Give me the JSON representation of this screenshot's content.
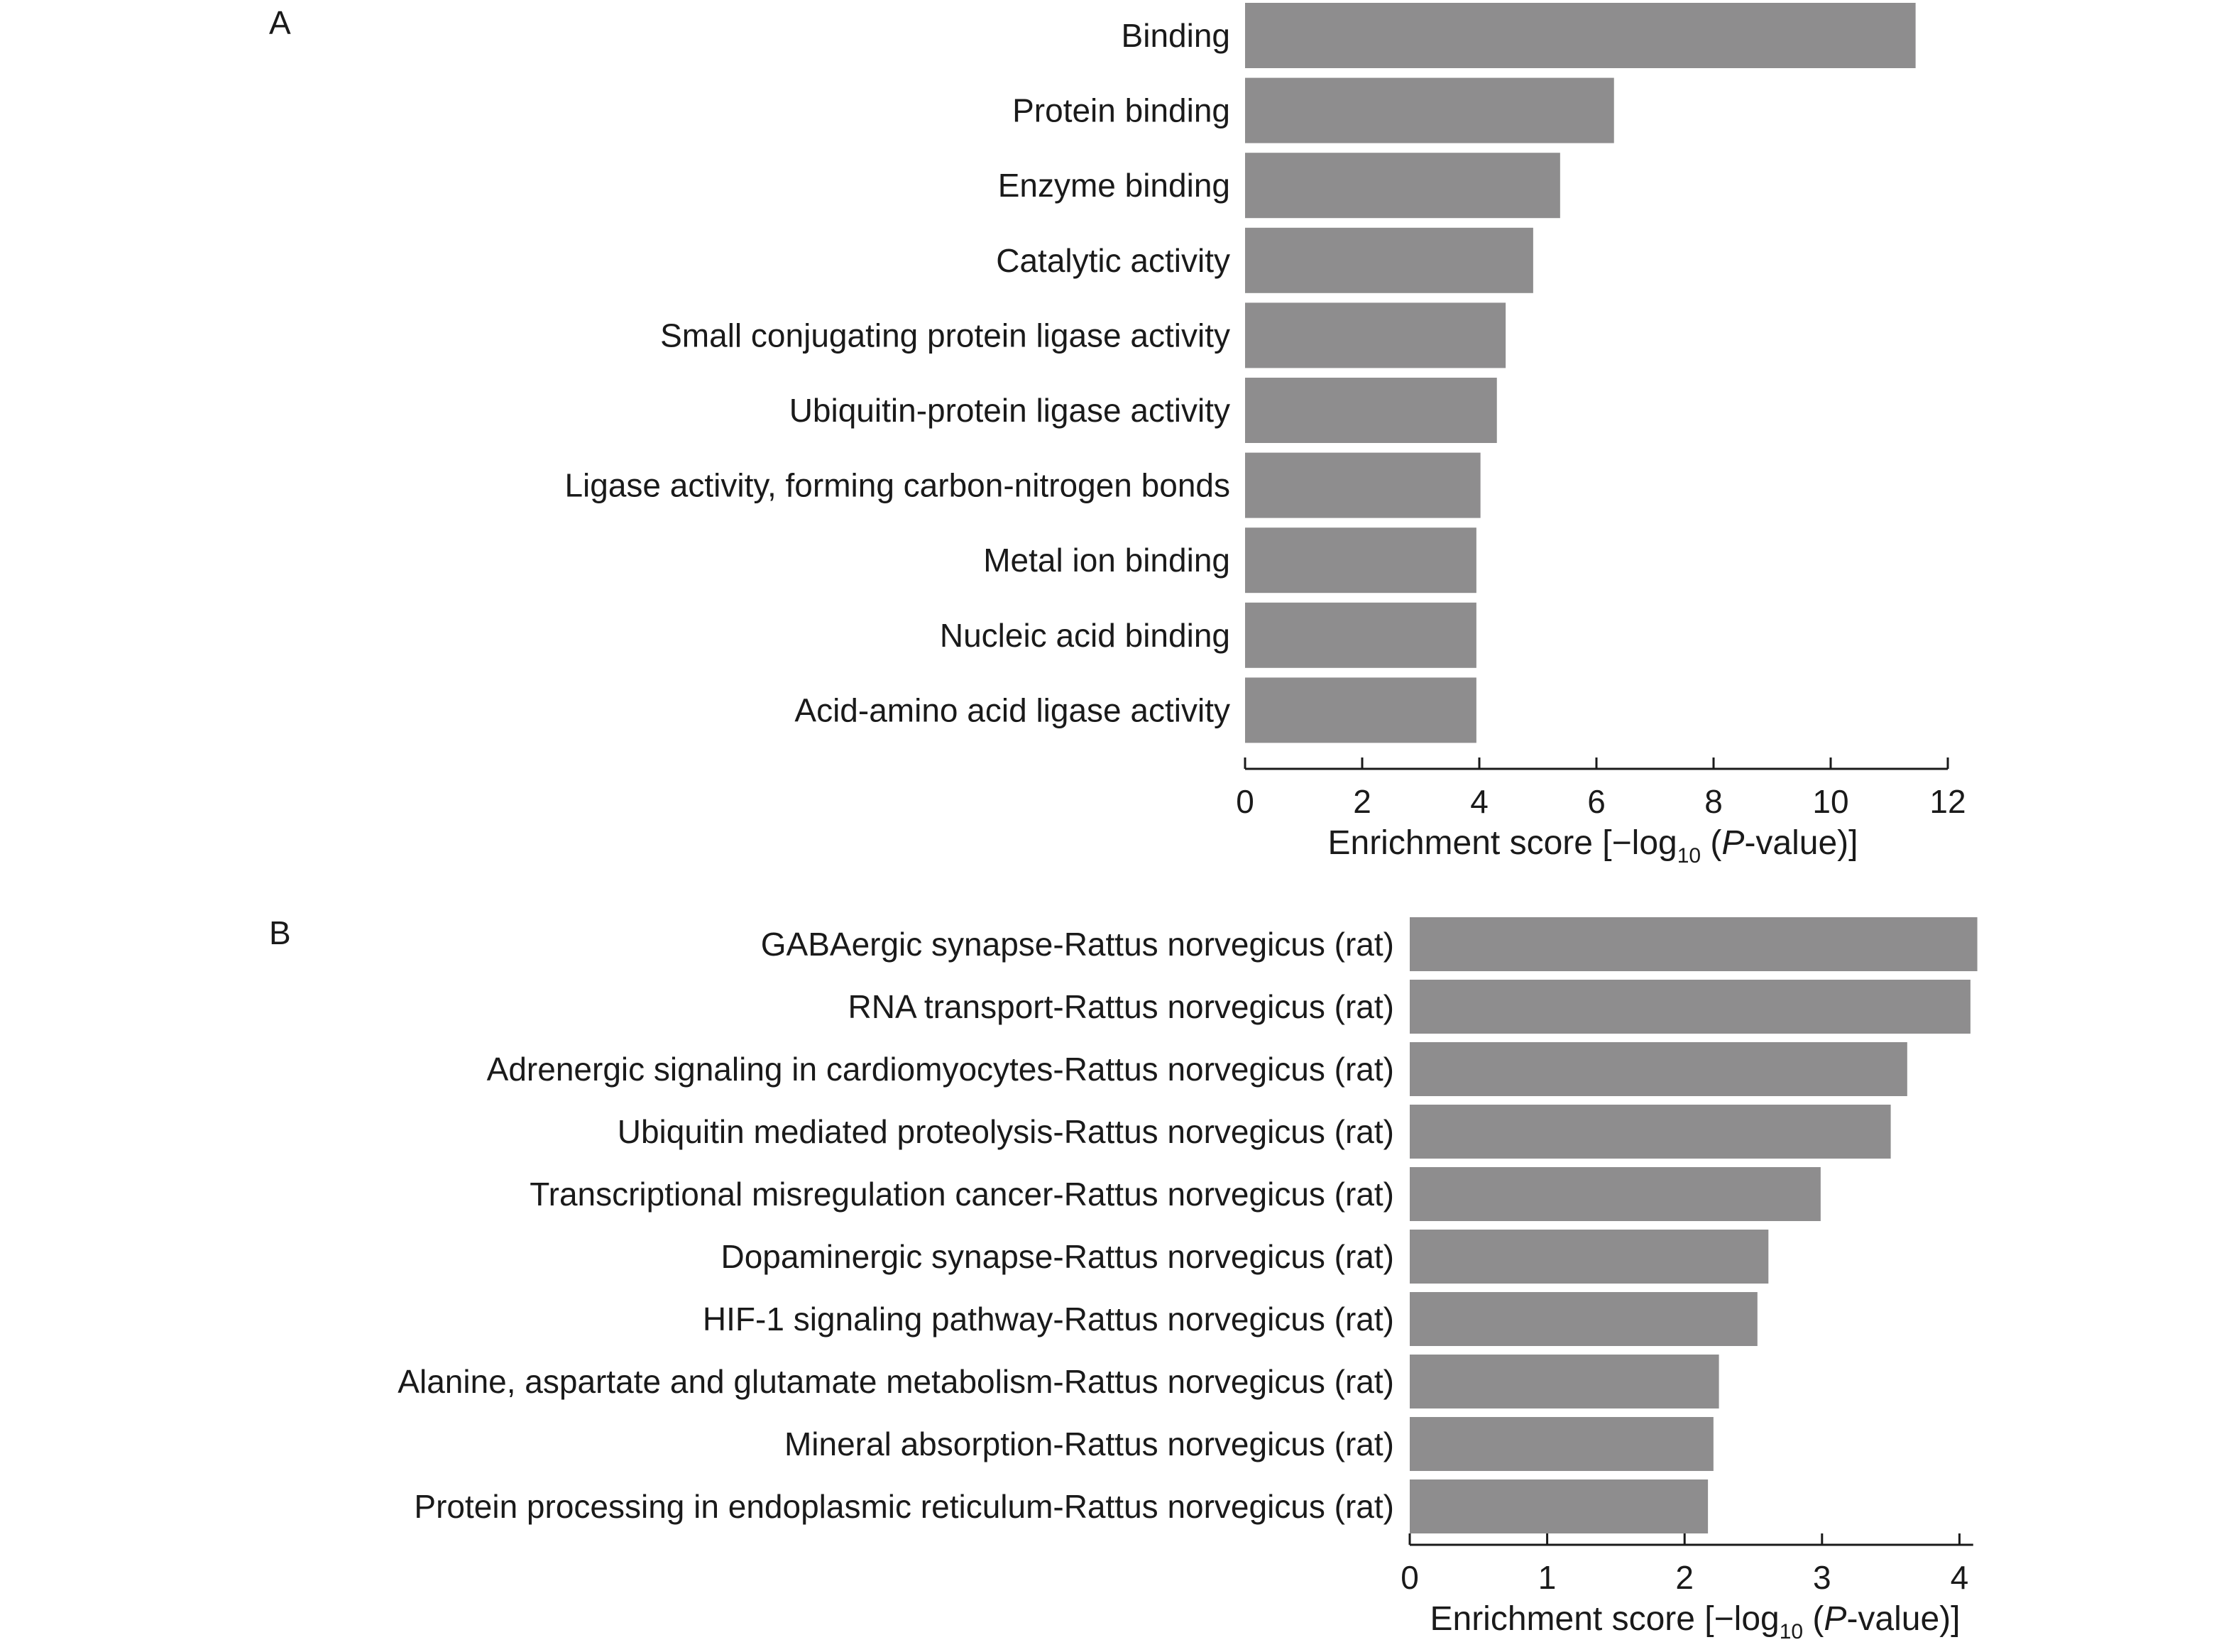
{
  "chart_data": [
    {
      "type": "bar",
      "orientation": "horizontal",
      "panel_label": "A",
      "title": "",
      "categories": [
        "Binding",
        "Protein binding",
        "Enzyme binding",
        "Catalytic activity",
        "Small conjugating protein ligase activity",
        "Ubiquitin-protein ligase activity",
        "Ligase activity, forming carbon-nitrogen bonds",
        "Metal ion binding",
        "Nucleic acid binding",
        "Acid-amino acid ligase activity"
      ],
      "values": [
        11.45,
        6.3,
        5.38,
        4.92,
        4.45,
        4.3,
        4.02,
        3.95,
        3.95,
        3.95
      ],
      "xlabel": {
        "pre": "Enrichment score [−log",
        "sub": "10",
        "mid": " (",
        "italic": "P",
        "post": "-value)]"
      },
      "xlim": [
        0,
        12
      ],
      "xticks": [
        0,
        2,
        4,
        6,
        8,
        10,
        12
      ],
      "bar_color": "#8e8d8e",
      "grid": false,
      "legend": "none"
    },
    {
      "type": "bar",
      "orientation": "horizontal",
      "panel_label": "B",
      "title": "",
      "categories": [
        "GABAergic synapse-Rattus norvegicus (rat)",
        "RNA transport-Rattus norvegicus (rat)",
        "Adrenergic signaling in cardiomyocytes-Rattus norvegicus (rat)",
        "Ubiquitin mediated proteolysis-Rattus norvegicus (rat)",
        "Transcriptional misregulation cancer-Rattus norvegicus (rat)",
        "Dopaminergic synapse-Rattus norvegicus (rat)",
        "HIF-1 signaling pathway-Rattus norvegicus (rat)",
        "Alanine, aspartate and glutamate metabolism-Rattus norvegicus (rat)",
        "Mineral absorption-Rattus norvegicus (rat)",
        "Protein processing in endoplasmic reticulum-Rattus norvegicus (rat)"
      ],
      "values": [
        4.13,
        4.08,
        3.62,
        3.5,
        2.99,
        2.61,
        2.53,
        2.25,
        2.21,
        2.17
      ],
      "xlabel": {
        "pre": "Enrichment score [−log",
        "sub": "10",
        "mid": " (",
        "italic": "P",
        "post": "-value)]"
      },
      "xlim": [
        0,
        4.1
      ],
      "xticks": [
        0,
        1,
        2,
        3,
        4
      ],
      "bar_color": "#8e8d8e",
      "grid": false,
      "legend": "none"
    }
  ]
}
